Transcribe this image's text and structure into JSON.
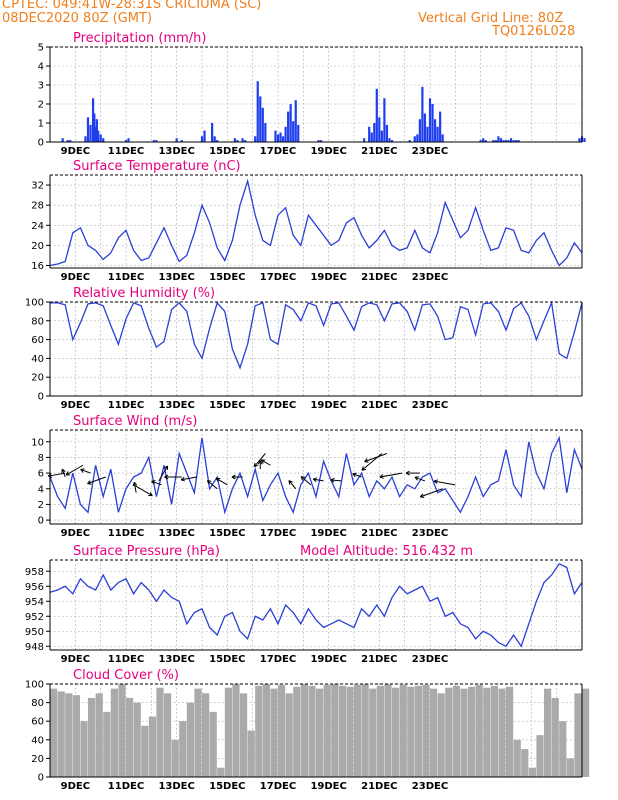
{
  "header": {
    "line1": "CPTEC:   049:41W-28:31S   CRICIUMA (SC)",
    "line2": "08DEC2020 80Z (GMT)",
    "vgrid": "Vertical Grid Line: 80Z",
    "code": "TQ0126L028"
  },
  "x_tick_labels": [
    "9DEC",
    "11DEC",
    "13DEC",
    "15DEC",
    "17DEC",
    "19DEC",
    "21DEC",
    "23DEC"
  ],
  "colors": {
    "header": "#f07f1e",
    "title": "#e6007e",
    "line": "#2b3fd6",
    "bar": "#1f3ef0",
    "cloud": "#aaaaaa",
    "arrow": "#000000"
  },
  "chart_data": [
    {
      "type": "bar",
      "title": "Precipitation (mm/h)",
      "ylim": [
        0,
        5
      ],
      "yticks": [
        0,
        1,
        2,
        3,
        4,
        5
      ],
      "x": [
        0.5,
        0.7,
        0.8,
        1.4,
        1.5,
        1.6,
        1.7,
        1.75,
        1.8,
        1.85,
        1.9,
        2.0,
        2.1,
        3.0,
        3.1,
        4.1,
        4.2,
        5.0,
        5.2,
        6.0,
        6.1,
        6.4,
        6.5,
        6.6,
        7.3,
        7.4,
        7.6,
        7.7,
        8.1,
        8.2,
        8.3,
        8.4,
        8.5,
        8.9,
        9.0,
        9.1,
        9.2,
        9.3,
        9.4,
        9.5,
        9.6,
        9.7,
        9.8,
        10.6,
        10.7,
        12.4,
        12.6,
        12.7,
        12.8,
        12.9,
        13.0,
        13.1,
        13.2,
        13.3,
        13.4,
        13.5,
        14.2,
        14.4,
        14.5,
        14.6,
        14.7,
        14.8,
        14.9,
        15.0,
        15.1,
        15.2,
        15.3,
        15.4,
        15.5,
        17.0,
        17.1,
        17.2,
        17.5,
        17.6,
        17.7,
        17.8,
        17.9,
        18.0,
        18.1,
        18.2,
        18.3,
        18.4,
        18.5,
        20.9,
        21.0,
        21.1
      ],
      "values": [
        0.2,
        0.1,
        0.1,
        0.3,
        1.3,
        0.9,
        2.3,
        1.5,
        0.8,
        1.2,
        0.6,
        0.4,
        0.2,
        0.1,
        0.2,
        0.1,
        0.1,
        0.2,
        0.1,
        0.3,
        0.6,
        1.0,
        0.3,
        0.1,
        0.2,
        0.1,
        0.2,
        0.1,
        0.3,
        3.2,
        2.4,
        1.8,
        1.0,
        0.6,
        0.4,
        0.5,
        0.3,
        0.8,
        1.6,
        2.0,
        1.1,
        2.2,
        0.9,
        0.1,
        0.1,
        0.2,
        0.8,
        0.5,
        1.0,
        2.8,
        1.3,
        0.6,
        2.3,
        0.9,
        0.2,
        0.1,
        0.1,
        0.3,
        0.4,
        1.2,
        2.9,
        1.5,
        0.8,
        2.3,
        2.0,
        1.2,
        0.8,
        1.6,
        0.4,
        0.1,
        0.2,
        0.1,
        0.1,
        0.1,
        0.3,
        0.2,
        0.1,
        0.1,
        0.1,
        0.2,
        0.1,
        0.1,
        0.1,
        0.2,
        0.3,
        0.2
      ]
    },
    {
      "type": "line",
      "title": "Surface Temperature (nC)",
      "ylim": [
        15.5,
        34
      ],
      "yticks": [
        16,
        20,
        24,
        28,
        32
      ],
      "x": [
        0.0,
        0.3,
        0.6,
        0.9,
        1.2,
        1.5,
        1.8,
        2.1,
        2.4,
        2.7,
        3.0,
        3.3,
        3.6,
        3.9,
        4.2,
        4.5,
        4.8,
        5.1,
        5.4,
        5.7,
        6.0,
        6.3,
        6.6,
        6.9,
        7.2,
        7.5,
        7.8,
        8.1,
        8.4,
        8.7,
        9.0,
        9.3,
        9.6,
        9.9,
        10.2,
        10.5,
        10.8,
        11.1,
        11.4,
        11.7,
        12.0,
        12.3,
        12.6,
        12.9,
        13.2,
        13.5,
        13.8,
        14.1,
        14.4,
        14.7,
        15.0,
        15.3,
        15.6,
        15.9,
        16.2,
        16.5,
        16.8,
        17.1,
        17.4,
        17.7,
        18.0,
        18.3,
        18.6,
        18.9,
        19.2,
        19.5,
        19.8,
        20.1,
        20.4,
        20.7,
        21.0
      ],
      "values": [
        16.0,
        16.3,
        16.8,
        22.5,
        23.5,
        20.0,
        19.0,
        17.2,
        18.5,
        21.5,
        23.0,
        19.0,
        17.0,
        17.5,
        20.5,
        23.5,
        20.0,
        16.8,
        18.0,
        22.5,
        28.0,
        24.5,
        19.5,
        17.0,
        21.0,
        28.0,
        32.8,
        26.0,
        21.0,
        20.0,
        26.0,
        27.5,
        22.0,
        20.0,
        26.0,
        24.0,
        22.0,
        20.0,
        21.0,
        24.5,
        25.5,
        22.0,
        19.5,
        21.0,
        23.0,
        20.0,
        19.0,
        19.5,
        23.0,
        19.5,
        18.5,
        22.5,
        28.5,
        25.0,
        21.5,
        23.0,
        27.5,
        23.0,
        19.0,
        19.5,
        23.5,
        23.0,
        19.0,
        18.5,
        21.0,
        22.5,
        19.0,
        16.0,
        17.5,
        20.5,
        18.5
      ]
    },
    {
      "type": "line",
      "title": "Relative Humidity (%)",
      "ylim": [
        0,
        100
      ],
      "yticks": [
        0,
        20,
        40,
        60,
        80,
        100
      ],
      "x": [
        0.0,
        0.3,
        0.6,
        0.9,
        1.2,
        1.5,
        1.8,
        2.1,
        2.4,
        2.7,
        3.0,
        3.3,
        3.6,
        3.9,
        4.2,
        4.5,
        4.8,
        5.1,
        5.4,
        5.7,
        6.0,
        6.3,
        6.6,
        6.9,
        7.2,
        7.5,
        7.8,
        8.1,
        8.4,
        8.7,
        9.0,
        9.3,
        9.6,
        9.9,
        10.2,
        10.5,
        10.8,
        11.1,
        11.4,
        11.7,
        12.0,
        12.3,
        12.6,
        12.9,
        13.2,
        13.5,
        13.8,
        14.1,
        14.4,
        14.7,
        15.0,
        15.3,
        15.6,
        15.9,
        16.2,
        16.5,
        16.8,
        17.1,
        17.4,
        17.7,
        18.0,
        18.3,
        18.6,
        18.9,
        19.2,
        19.5,
        19.8,
        20.1,
        20.4,
        20.7,
        21.0
      ],
      "values": [
        99,
        99,
        97,
        60,
        78,
        98,
        99,
        96,
        75,
        55,
        82,
        99,
        96,
        72,
        52,
        58,
        92,
        99,
        90,
        55,
        40,
        72,
        99,
        90,
        50,
        30,
        55,
        96,
        99,
        60,
        55,
        97,
        92,
        80,
        99,
        96,
        75,
        98,
        99,
        85,
        70,
        95,
        99,
        97,
        80,
        98,
        99,
        90,
        70,
        97,
        98,
        85,
        60,
        62,
        95,
        92,
        65,
        98,
        99,
        90,
        70,
        93,
        99,
        85,
        60,
        80,
        99,
        45,
        40,
        68,
        99
      ]
    },
    {
      "type": "line",
      "title": "Surface Wind (m/s)",
      "ylim": [
        -0.5,
        11.5
      ],
      "yticks": [
        0,
        2,
        4,
        6,
        8,
        10
      ],
      "x": [
        0.0,
        0.3,
        0.6,
        0.9,
        1.2,
        1.5,
        1.8,
        2.1,
        2.4,
        2.7,
        3.0,
        3.3,
        3.6,
        3.9,
        4.2,
        4.5,
        4.8,
        5.1,
        5.4,
        5.7,
        6.0,
        6.3,
        6.6,
        6.9,
        7.2,
        7.5,
        7.8,
        8.1,
        8.4,
        8.7,
        9.0,
        9.3,
        9.6,
        9.9,
        10.2,
        10.5,
        10.8,
        11.1,
        11.4,
        11.7,
        12.0,
        12.3,
        12.6,
        12.9,
        13.2,
        13.5,
        13.8,
        14.1,
        14.4,
        14.7,
        15.0,
        15.3,
        15.6,
        15.9,
        16.2,
        16.5,
        16.8,
        17.1,
        17.4,
        17.7,
        18.0,
        18.3,
        18.6,
        18.9,
        19.2,
        19.5,
        19.8,
        20.1,
        20.4,
        20.7,
        21.0
      ],
      "values": [
        5.5,
        3.0,
        1.5,
        6.0,
        2.0,
        1.0,
        7.0,
        3.0,
        6.5,
        1.0,
        4.0,
        5.5,
        6.0,
        8.0,
        3.0,
        7.0,
        2.0,
        8.5,
        6.0,
        3.5,
        10.5,
        4.0,
        5.5,
        1.0,
        4.0,
        6.0,
        3.0,
        6.5,
        2.5,
        4.5,
        6.0,
        3.0,
        1.0,
        4.5,
        6.0,
        3.0,
        7.5,
        5.0,
        3.0,
        8.5,
        4.5,
        6.0,
        3.0,
        5.0,
        4.0,
        5.5,
        3.0,
        4.5,
        4.0,
        5.5,
        6.0,
        3.5,
        4.0,
        2.5,
        1.0,
        3.0,
        5.5,
        3.0,
        4.5,
        5.0,
        9.0,
        4.5,
        3.0,
        10.0,
        6.0,
        4.0,
        8.5,
        10.5,
        3.5,
        9.0,
        6.5
      ],
      "vectors": [
        {
          "x": 0.6,
          "y": 6.0,
          "dir_deg": 170,
          "speed": 6.0
        },
        {
          "x": 0.6,
          "y": 5.5,
          "dir_deg": 250,
          "speed": 2.0
        },
        {
          "x": 1.3,
          "y": 7.0,
          "dir_deg": 150,
          "speed": 7.0
        },
        {
          "x": 1.6,
          "y": 6.0,
          "dir_deg": 200,
          "speed": 3.0
        },
        {
          "x": 2.2,
          "y": 5.5,
          "dir_deg": 160,
          "speed": 7.0
        },
        {
          "x": 3.3,
          "y": 4.5,
          "dir_deg": 30,
          "speed": 8.0
        },
        {
          "x": 3.4,
          "y": 3.5,
          "dir_deg": 260,
          "speed": 3.0
        },
        {
          "x": 4.3,
          "y": 5.0,
          "dir_deg": 300,
          "speed": 6.0
        },
        {
          "x": 4.4,
          "y": 4.5,
          "dir_deg": 200,
          "speed": 3.0
        },
        {
          "x": 5.2,
          "y": 5.5,
          "dir_deg": 180,
          "speed": 6.0
        },
        {
          "x": 5.8,
          "y": 5.5,
          "dir_deg": 170,
          "speed": 5.5
        },
        {
          "x": 6.6,
          "y": 4.0,
          "dir_deg": 220,
          "speed": 4.0
        },
        {
          "x": 7.0,
          "y": 4.5,
          "dir_deg": 210,
          "speed": 4.0
        },
        {
          "x": 7.6,
          "y": 5.5,
          "dir_deg": 180,
          "speed": 3.0
        },
        {
          "x": 8.3,
          "y": 6.5,
          "dir_deg": 270,
          "speed": 2.0
        },
        {
          "x": 8.5,
          "y": 8.5,
          "dir_deg": 130,
          "speed": 6.0
        },
        {
          "x": 8.7,
          "y": 7.0,
          "dir_deg": 210,
          "speed": 3.0
        },
        {
          "x": 9.7,
          "y": 4.0,
          "dir_deg": 230,
          "speed": 3.0
        },
        {
          "x": 10.3,
          "y": 4.5,
          "dir_deg": 220,
          "speed": 4.0
        },
        {
          "x": 10.8,
          "y": 5.0,
          "dir_deg": 190,
          "speed": 3.0
        },
        {
          "x": 11.5,
          "y": 5.0,
          "dir_deg": 185,
          "speed": 3.0
        },
        {
          "x": 12.3,
          "y": 5.5,
          "dir_deg": 200,
          "speed": 2.5
        },
        {
          "x": 13.1,
          "y": 8.5,
          "dir_deg": 140,
          "speed": 10.0
        },
        {
          "x": 13.3,
          "y": 8.5,
          "dir_deg": 160,
          "speed": 9.0
        },
        {
          "x": 13.9,
          "y": 6.0,
          "dir_deg": 170,
          "speed": 8.5
        },
        {
          "x": 14.6,
          "y": 6.0,
          "dir_deg": 180,
          "speed": 4.5
        },
        {
          "x": 14.8,
          "y": 5.0,
          "dir_deg": 200,
          "speed": 3.0
        },
        {
          "x": 15.5,
          "y": 4.0,
          "dir_deg": 160,
          "speed": 9.0
        },
        {
          "x": 16.0,
          "y": 4.5,
          "dir_deg": 190,
          "speed": 8.0
        }
      ]
    },
    {
      "type": "line",
      "title": "Surface Pressure (hPa)",
      "subtitle": "Model Altitude: 516.432  m",
      "ylim": [
        947.5,
        959.5
      ],
      "yticks": [
        948,
        950,
        952,
        954,
        956,
        958
      ],
      "x": [
        0.0,
        0.3,
        0.6,
        0.9,
        1.2,
        1.5,
        1.8,
        2.1,
        2.4,
        2.7,
        3.0,
        3.3,
        3.6,
        3.9,
        4.2,
        4.5,
        4.8,
        5.1,
        5.4,
        5.7,
        6.0,
        6.3,
        6.6,
        6.9,
        7.2,
        7.5,
        7.8,
        8.1,
        8.4,
        8.7,
        9.0,
        9.3,
        9.6,
        9.9,
        10.2,
        10.5,
        10.8,
        11.1,
        11.4,
        11.7,
        12.0,
        12.3,
        12.6,
        12.9,
        13.2,
        13.5,
        13.8,
        14.1,
        14.4,
        14.7,
        15.0,
        15.3,
        15.6,
        15.9,
        16.2,
        16.5,
        16.8,
        17.1,
        17.4,
        17.7,
        18.0,
        18.3,
        18.6,
        18.9,
        19.2,
        19.5,
        19.8,
        20.1,
        20.4,
        20.7,
        21.0
      ],
      "values": [
        955.2,
        955.5,
        956.0,
        955.0,
        957.0,
        956.0,
        955.5,
        957.5,
        955.5,
        956.5,
        957.0,
        955.0,
        956.5,
        955.5,
        954.0,
        955.5,
        954.5,
        954.0,
        951.0,
        952.5,
        953.0,
        950.5,
        949.5,
        952.0,
        952.5,
        950.0,
        949.0,
        952.0,
        951.5,
        953.0,
        951.0,
        953.5,
        952.5,
        951.0,
        953.0,
        951.5,
        950.5,
        951.0,
        951.5,
        951.0,
        950.5,
        953.0,
        952.0,
        953.5,
        952.0,
        954.5,
        956.0,
        955.0,
        955.5,
        956.0,
        954.0,
        954.5,
        952.0,
        952.5,
        951.0,
        950.5,
        949.0,
        950.0,
        949.5,
        948.5,
        948.0,
        949.5,
        948.0,
        951.0,
        954.0,
        956.5,
        957.5,
        959.0,
        958.5,
        955.0,
        956.5
      ]
    },
    {
      "type": "bar",
      "title": "Cloud Cover (%)",
      "ylim": [
        0,
        100
      ],
      "yticks": [
        0,
        20,
        40,
        60,
        80,
        100
      ],
      "x": [
        0.0,
        0.3,
        0.6,
        0.9,
        1.2,
        1.5,
        1.8,
        2.1,
        2.4,
        2.7,
        3.0,
        3.3,
        3.6,
        3.9,
        4.2,
        4.5,
        4.8,
        5.1,
        5.4,
        5.7,
        6.0,
        6.3,
        6.6,
        6.9,
        7.2,
        7.5,
        7.8,
        8.1,
        8.4,
        8.7,
        9.0,
        9.3,
        9.6,
        9.9,
        10.2,
        10.5,
        10.8,
        11.1,
        11.4,
        11.7,
        12.0,
        12.3,
        12.6,
        12.9,
        13.2,
        13.5,
        13.8,
        14.1,
        14.4,
        14.7,
        15.0,
        15.3,
        15.6,
        15.9,
        16.2,
        16.5,
        16.8,
        17.1,
        17.4,
        17.7,
        18.0,
        18.3,
        18.6,
        18.9,
        19.2,
        19.5,
        19.8,
        20.1,
        20.4,
        20.7,
        21.0
      ],
      "values": [
        95,
        92,
        90,
        88,
        60,
        85,
        90,
        70,
        95,
        100,
        85,
        80,
        55,
        65,
        96,
        90,
        40,
        60,
        80,
        95,
        90,
        70,
        10,
        96,
        100,
        90,
        50,
        98,
        100,
        95,
        99,
        90,
        97,
        100,
        98,
        95,
        99,
        100,
        98,
        97,
        99,
        100,
        95,
        98,
        100,
        96,
        99,
        97,
        98,
        99,
        95,
        90,
        96,
        98,
        95,
        97,
        99,
        96,
        98,
        95,
        97,
        40,
        30,
        10,
        45,
        95,
        85,
        60,
        20,
        90,
        95
      ]
    }
  ]
}
